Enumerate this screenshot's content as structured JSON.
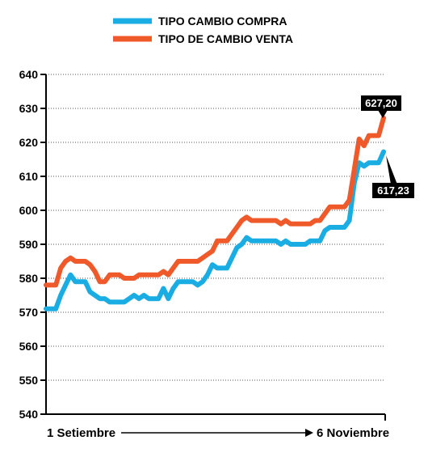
{
  "chart_data": {
    "type": "line",
    "title": "",
    "ylim": [
      540,
      640
    ],
    "y_ticks": [
      "640",
      "630",
      "620",
      "610",
      "600",
      "590",
      "580",
      "570",
      "560",
      "550",
      "540"
    ],
    "x_start_label": "1 Setiembre",
    "x_end_label": "6 Noviembre",
    "grid": "horizontal-dotted",
    "legend_position": "top",
    "series": [
      {
        "name": "TIPO CAMBIO COMPRA",
        "color": "#1aade4",
        "values": [
          571,
          571,
          571,
          575,
          578,
          581,
          579,
          579,
          579,
          576,
          575,
          574,
          574,
          573,
          573,
          573,
          573,
          574,
          575,
          574,
          575,
          574,
          574,
          574,
          577,
          574,
          577,
          579,
          579,
          579,
          579,
          578,
          579,
          581,
          584,
          583,
          583,
          583,
          586,
          589,
          590,
          592,
          591,
          591,
          591,
          591,
          591,
          591,
          590,
          591,
          590,
          590,
          590,
          590,
          591,
          591,
          591,
          594,
          595,
          595,
          595,
          595,
          597,
          608,
          614,
          613,
          614,
          614,
          614,
          617.23
        ],
        "end_label": "617,23"
      },
      {
        "name": "TIPO DE CAMBIO VENTA",
        "color": "#f05a2a",
        "values": [
          578,
          578,
          578,
          583,
          585,
          586,
          585,
          585,
          585,
          584,
          582,
          579,
          579,
          581,
          581,
          581,
          580,
          580,
          580,
          581,
          581,
          581,
          581,
          581,
          582,
          581,
          583,
          585,
          585,
          585,
          585,
          585,
          586,
          587,
          588,
          591,
          591,
          591,
          593,
          595,
          597,
          598,
          597,
          597,
          597,
          597,
          597,
          597,
          596,
          597,
          596,
          596,
          596,
          596,
          596,
          597,
          597,
          599,
          601,
          601,
          601,
          601,
          603,
          612,
          621,
          619,
          622,
          622,
          622,
          627.2
        ],
        "end_label": "627,20"
      }
    ]
  }
}
